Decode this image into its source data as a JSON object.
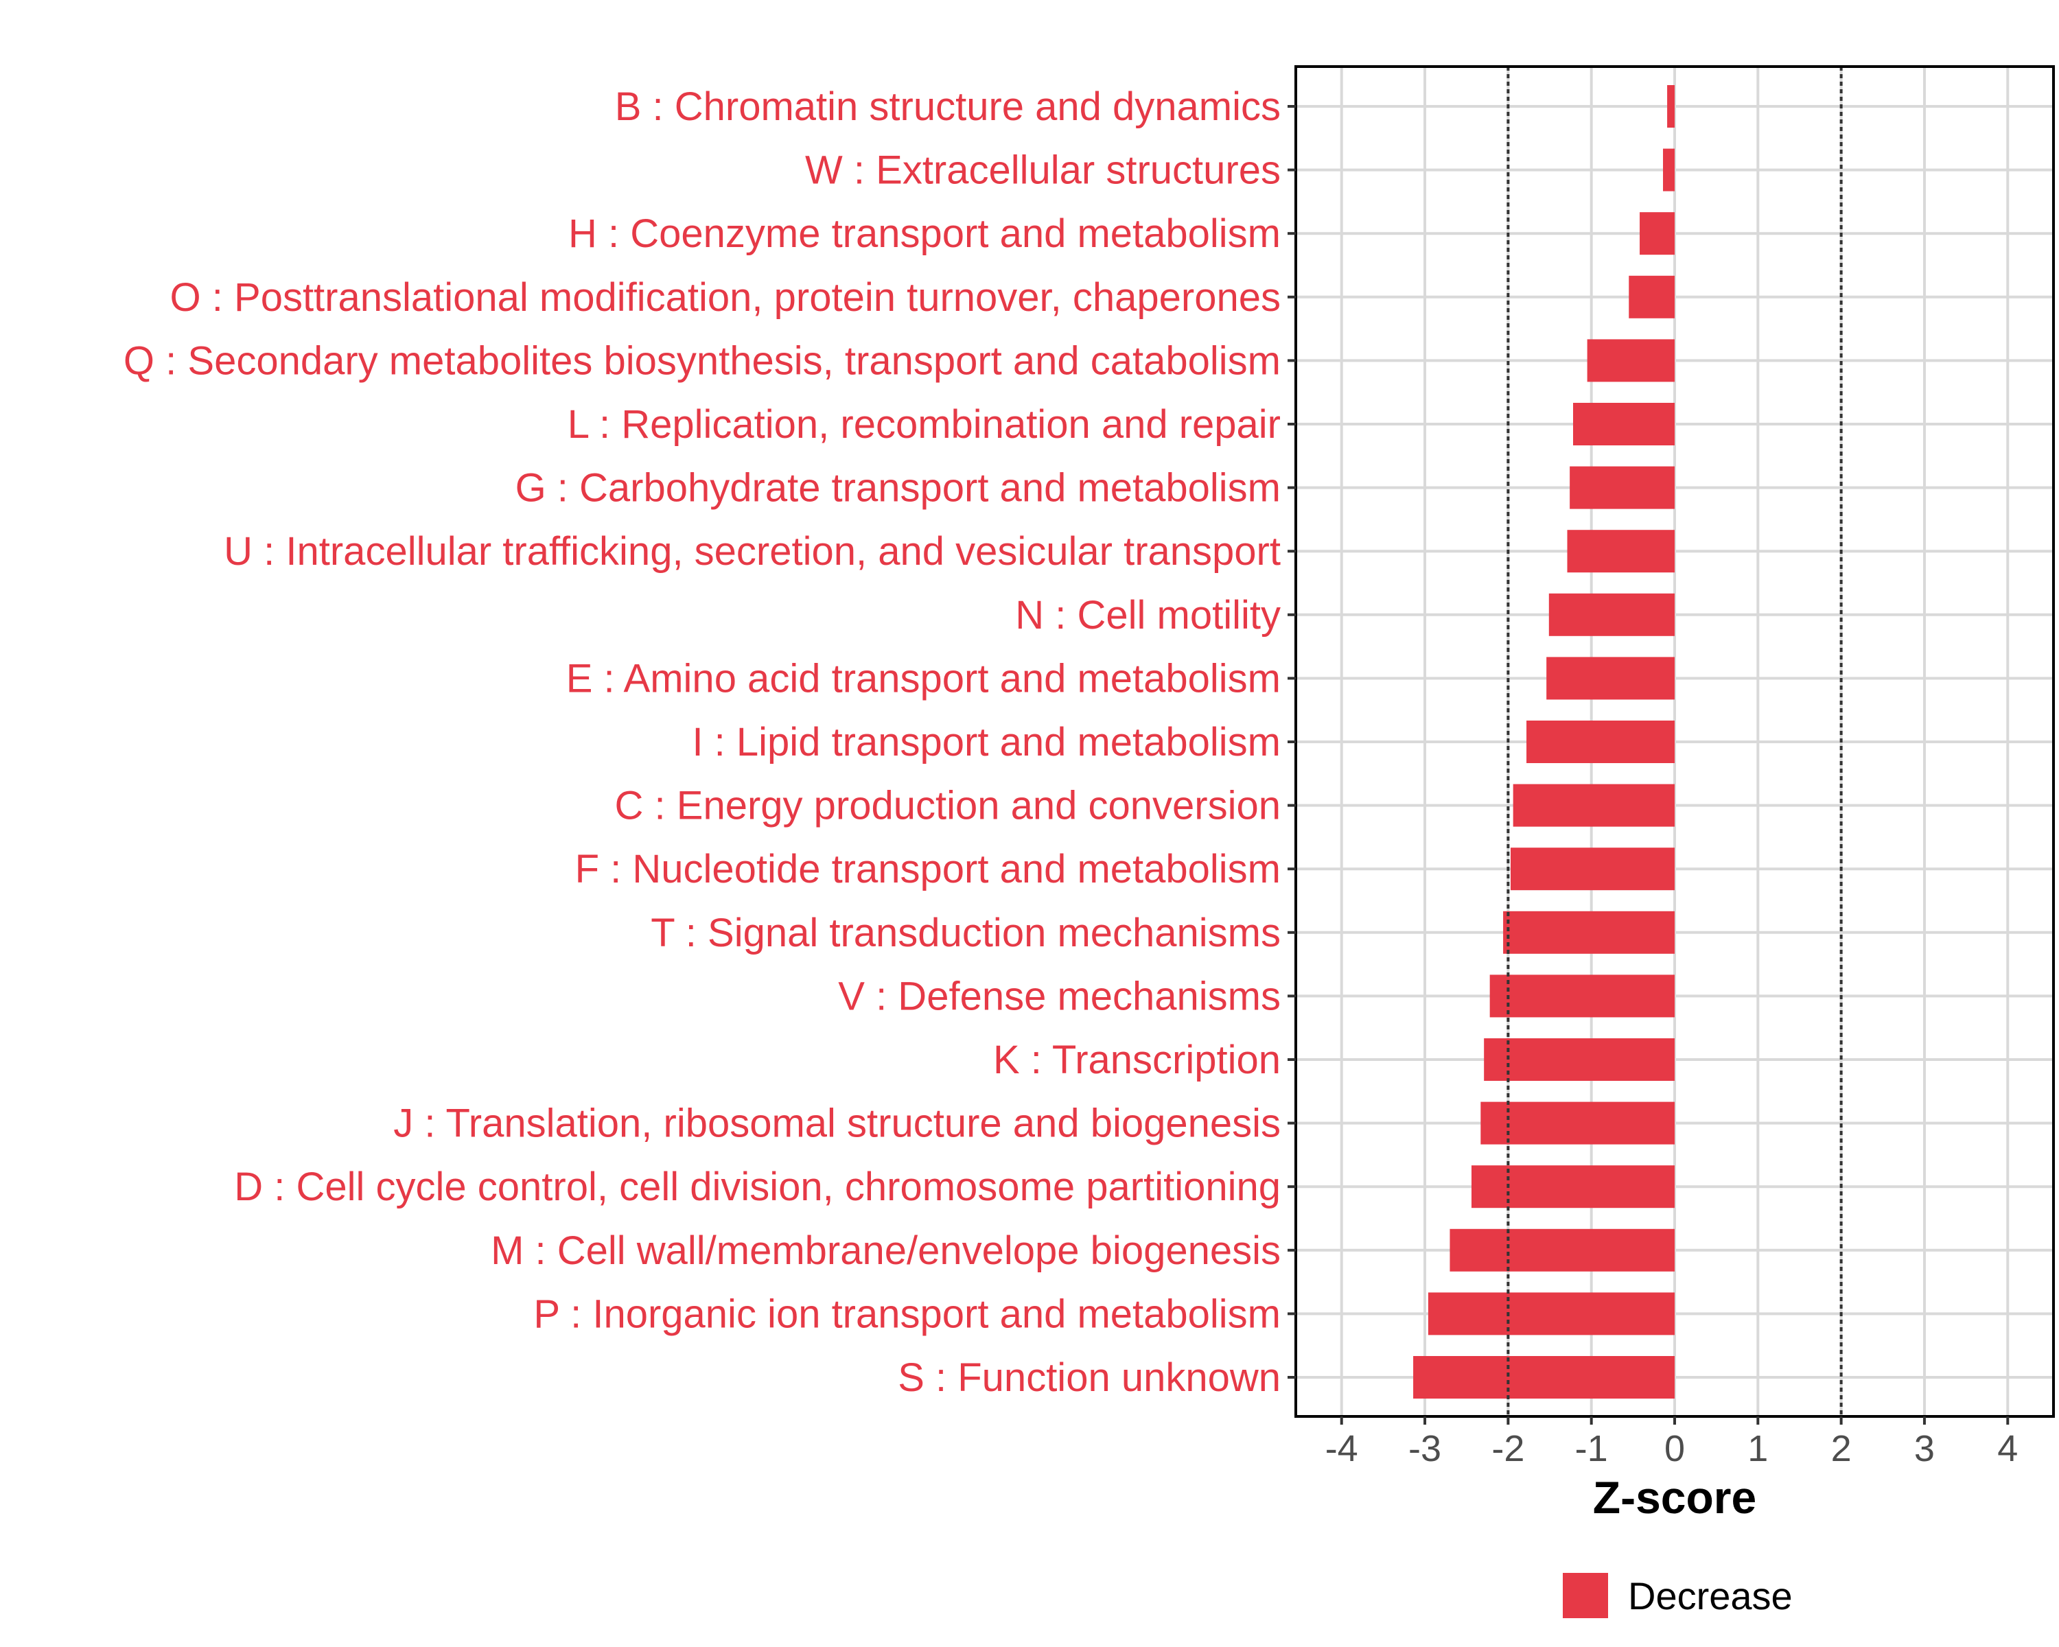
{
  "chart_data": {
    "type": "bar",
    "orientation": "horizontal",
    "title": "",
    "xlabel": "Z-score",
    "ylabel": "",
    "xlim": [
      -4.55,
      4.55
    ],
    "xticks": [
      -4,
      -3,
      -2,
      -1,
      0,
      1,
      2,
      3,
      4
    ],
    "xtick_labels": [
      "-4",
      "-3",
      "-2",
      "-1",
      "0",
      "1",
      "2",
      "3",
      "4"
    ],
    "reference_lines": [
      -2,
      2
    ],
    "grid": true,
    "categories": [
      "B : Chromatin structure and dynamics",
      "W : Extracellular structures",
      "H : Coenzyme transport and metabolism",
      "O : Posttranslational modification, protein turnover, chaperones",
      "Q : Secondary metabolites biosynthesis, transport and catabolism",
      "L : Replication, recombination and repair",
      "G : Carbohydrate transport and metabolism",
      "U : Intracellular trafficking, secretion, and vesicular transport",
      "N : Cell motility",
      "E : Amino acid transport and metabolism",
      "I : Lipid transport and metabolism",
      "C : Energy production and conversion",
      "F : Nucleotide transport and metabolism",
      "T : Signal transduction mechanisms",
      "V : Defense mechanisms",
      "K : Transcription",
      "J : Translation, ribosomal structure and biogenesis",
      "D : Cell cycle control, cell division, chromosome partitioning",
      "M : Cell wall/membrane/envelope biogenesis",
      "P : Inorganic ion transport and metabolism",
      "S : Function unknown"
    ],
    "values": [
      -0.09,
      -0.14,
      -0.42,
      -0.55,
      -1.05,
      -1.22,
      -1.26,
      -1.29,
      -1.51,
      -1.54,
      -1.78,
      -1.94,
      -1.97,
      -2.06,
      -2.22,
      -2.29,
      -2.33,
      -2.44,
      -2.7,
      -2.96,
      -3.14
    ],
    "series": [
      {
        "name": "Decrease",
        "color": "#E63946"
      }
    ],
    "legend": {
      "position": "bottom",
      "entries": [
        "Decrease"
      ]
    }
  },
  "colors": {
    "bar": "#E63946",
    "category_label": "#E63946",
    "grid": "#d9d9d9",
    "panel_border": "#000000",
    "reference_line": "#333333"
  }
}
